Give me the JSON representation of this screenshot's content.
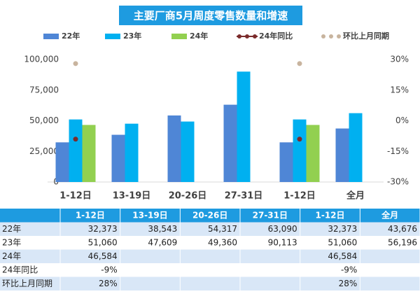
{
  "chart_data": {
    "type": "bar",
    "title": "主要厂商5月周度零售数量和增速",
    "categories": [
      "1-12日",
      "13-19日",
      "20-26日",
      "27-31日",
      "1-12日",
      "全月"
    ],
    "series": [
      {
        "name": "22年",
        "type": "bar",
        "color": "#4f86d6",
        "values": [
          32373,
          38543,
          54317,
          63090,
          32373,
          43676
        ],
        "value_labels": [
          "32,373",
          "38,543",
          "54,317",
          "63,090",
          "32,373",
          "43,676"
        ]
      },
      {
        "name": "23年",
        "type": "bar",
        "color": "#00b0f0",
        "values": [
          51060,
          47609,
          49360,
          90113,
          51060,
          56196
        ],
        "value_labels": [
          "51,060",
          "47,609",
          "49,360",
          "90,113",
          "51,060",
          "56,196"
        ]
      },
      {
        "name": "24年",
        "type": "bar",
        "color": "#92d050",
        "values": [
          46584,
          null,
          null,
          null,
          46584,
          null
        ],
        "value_labels": [
          "46,584",
          null,
          null,
          null,
          "46,584",
          null
        ]
      },
      {
        "name": "24年同比",
        "type": "line",
        "axis": "y2",
        "color": "#7b2c2c",
        "values": [
          -9,
          null,
          null,
          null,
          -9,
          null
        ],
        "value_labels": [
          "-9%",
          null,
          null,
          null,
          "-9%",
          null
        ]
      },
      {
        "name": "环比上月同期",
        "type": "scatter",
        "axis": "y2",
        "color": "#c8b49e",
        "values": [
          28,
          null,
          null,
          null,
          28,
          null
        ],
        "value_labels": [
          "28%",
          null,
          null,
          null,
          "28%",
          null
        ]
      }
    ],
    "ylim": [
      0,
      100000
    ],
    "yticks": [
      0,
      {
        "value": 25000,
        "label": "25,000"
      },
      {
        "value": 50000,
        "label": "50,000"
      },
      {
        "value": 75000,
        "label": "75,000"
      },
      {
        "value": 100000,
        "label": "100,000"
      }
    ],
    "y2lim": [
      -30,
      30
    ],
    "y2ticks": [
      {
        "value": -30,
        "label": "-30%"
      },
      {
        "value": -15,
        "label": "-15%"
      },
      {
        "value": 0,
        "label": "0%"
      },
      {
        "value": 15,
        "label": "15%"
      },
      {
        "value": 30,
        "label": "30%"
      }
    ],
    "legend": "top",
    "grid": false
  }
}
